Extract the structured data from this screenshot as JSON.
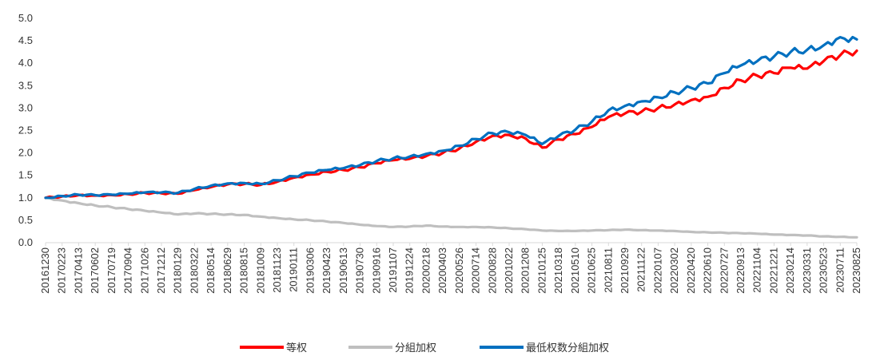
{
  "chart_data": {
    "type": "line",
    "title": "",
    "xlabel": "",
    "ylabel": "",
    "ylim": [
      0,
      5
    ],
    "y_ticks": [
      "0.0",
      "0.5",
      "1.0",
      "1.5",
      "2.0",
      "2.5",
      "3.0",
      "3.5",
      "4.0",
      "4.5",
      "5.0"
    ],
    "categories": [
      "20161230",
      "20170223",
      "20170413",
      "20170602",
      "20170719",
      "20170904",
      "20171026",
      "20171212",
      "20180129",
      "20180322",
      "20180514",
      "20180629",
      "20180815",
      "20181009",
      "20181123",
      "20190111",
      "20190306",
      "20190423",
      "20190613",
      "20190730",
      "20190916",
      "20191107",
      "20191224",
      "20200218",
      "20200403",
      "20200526",
      "20200714",
      "20200828",
      "20201022",
      "20201208",
      "20210125",
      "20210318",
      "20210510",
      "20210625",
      "20210811",
      "20210929",
      "20211122",
      "20220107",
      "20220302",
      "20220420",
      "20220610",
      "20220727",
      "20220913",
      "20221104",
      "20221221",
      "20230214",
      "20230331",
      "20230523",
      "20230711",
      "20230825"
    ],
    "grid": false,
    "legend_position": "bottom",
    "series": [
      {
        "name": "等权",
        "color": "#FF0000",
        "values": [
          1.0,
          1.03,
          1.06,
          1.05,
          1.06,
          1.08,
          1.11,
          1.1,
          1.09,
          1.17,
          1.24,
          1.3,
          1.31,
          1.29,
          1.36,
          1.45,
          1.52,
          1.58,
          1.62,
          1.68,
          1.77,
          1.84,
          1.87,
          1.93,
          2.0,
          2.1,
          2.25,
          2.38,
          2.4,
          2.32,
          2.12,
          2.3,
          2.42,
          2.58,
          2.8,
          2.88,
          2.92,
          3.0,
          3.08,
          3.18,
          3.25,
          3.45,
          3.62,
          3.72,
          3.78,
          3.9,
          3.88,
          4.05,
          4.18,
          4.28
        ]
      },
      {
        "name": "分組加权",
        "color": "#BFBFBF",
        "values": [
          1.0,
          0.94,
          0.88,
          0.83,
          0.79,
          0.75,
          0.71,
          0.67,
          0.63,
          0.65,
          0.64,
          0.63,
          0.62,
          0.58,
          0.55,
          0.52,
          0.5,
          0.47,
          0.44,
          0.4,
          0.37,
          0.35,
          0.36,
          0.38,
          0.36,
          0.35,
          0.35,
          0.34,
          0.32,
          0.3,
          0.27,
          0.26,
          0.26,
          0.27,
          0.28,
          0.29,
          0.28,
          0.27,
          0.26,
          0.24,
          0.23,
          0.22,
          0.21,
          0.2,
          0.18,
          0.17,
          0.16,
          0.14,
          0.13,
          0.12
        ]
      },
      {
        "name": "最低权数分組加权",
        "color": "#0070C0",
        "values": [
          1.0,
          1.04,
          1.07,
          1.06,
          1.07,
          1.09,
          1.12,
          1.12,
          1.11,
          1.2,
          1.27,
          1.32,
          1.33,
          1.31,
          1.39,
          1.48,
          1.56,
          1.62,
          1.66,
          1.73,
          1.82,
          1.88,
          1.92,
          1.98,
          2.05,
          2.16,
          2.31,
          2.44,
          2.46,
          2.4,
          2.2,
          2.38,
          2.52,
          2.7,
          2.95,
          3.05,
          3.15,
          3.24,
          3.35,
          3.45,
          3.55,
          3.78,
          3.95,
          4.05,
          4.15,
          4.25,
          4.3,
          4.4,
          4.58,
          4.53
        ]
      }
    ]
  }
}
